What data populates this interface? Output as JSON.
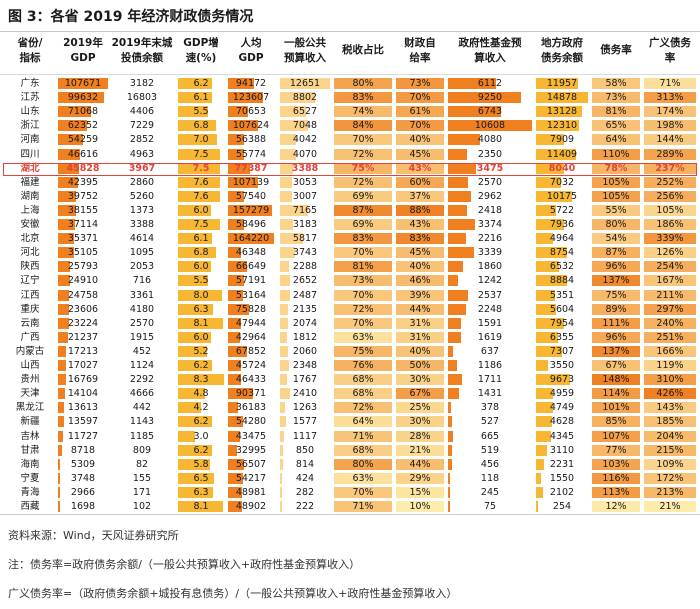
{
  "title": "图 3：各省 2019 年经济财政债务情况",
  "headers": [
    [
      "省份/",
      "指标"
    ],
    [
      "2019年",
      "GDP"
    ],
    [
      "2019年末城",
      "投债余额"
    ],
    [
      "GDP增",
      "速(%)"
    ],
    [
      "人均",
      "GDP"
    ],
    [
      "一般公共",
      "预算收入"
    ],
    [
      "税收占比"
    ],
    [
      "财政自",
      "给率"
    ],
    [
      "政府性基金预",
      "算收入"
    ],
    [
      "地方政府",
      "债务余额"
    ],
    [
      "债务率"
    ],
    [
      "广义债务",
      "率"
    ]
  ],
  "rows": [
    {
      "province": "广东",
      "gdp": "107671",
      "ctb": "3182",
      "growth": "6.2",
      "pgdp": "94172",
      "rev": "12651",
      "tax": "80%",
      "self": "73%",
      "fund": "6112",
      "debt": "11957",
      "dr": "58%",
      "gdr": "71%"
    },
    {
      "province": "江苏",
      "gdp": "99632",
      "ctb": "16803",
      "growth": "6.1",
      "pgdp": "123607",
      "rev": "8802",
      "tax": "83%",
      "self": "70%",
      "fund": "9250",
      "debt": "14878",
      "dr": "73%",
      "gdr": "313%"
    },
    {
      "province": "山东",
      "gdp": "71068",
      "ctb": "4406",
      "growth": "5.5",
      "pgdp": "70653",
      "rev": "6527",
      "tax": "74%",
      "self": "61%",
      "fund": "6743",
      "debt": "13128",
      "dr": "81%",
      "gdr": "174%"
    },
    {
      "province": "浙江",
      "gdp": "62352",
      "ctb": "7229",
      "growth": "6.8",
      "pgdp": "107624",
      "rev": "7048",
      "tax": "84%",
      "self": "70%",
      "fund": "10608",
      "debt": "12310",
      "dr": "65%",
      "gdr": "198%"
    },
    {
      "province": "河南",
      "gdp": "54259",
      "ctb": "2852",
      "growth": "7.0",
      "pgdp": "56388",
      "rev": "4042",
      "tax": "70%",
      "self": "40%",
      "fund": "4080",
      "debt": "7909",
      "dr": "64%",
      "gdr": "144%"
    },
    {
      "province": "四川",
      "gdp": "46616",
      "ctb": "4963",
      "growth": "7.5",
      "pgdp": "55774",
      "rev": "4070",
      "tax": "72%",
      "self": "45%",
      "fund": "2350",
      "debt": "11409",
      "dr": "110%",
      "gdr": "289%"
    },
    {
      "province": "湖北",
      "gdp": "45828",
      "ctb": "3967",
      "growth": "7.5",
      "pgdp": "77387",
      "rev": "3388",
      "tax": "75%",
      "self": "43%",
      "fund": "3475",
      "debt": "8040",
      "dr": "78%",
      "gdr": "237%"
    },
    {
      "province": "福建",
      "gdp": "42395",
      "ctb": "2860",
      "growth": "7.6",
      "pgdp": "107139",
      "rev": "3053",
      "tax": "72%",
      "self": "60%",
      "fund": "2570",
      "debt": "7032",
      "dr": "105%",
      "gdr": "252%"
    },
    {
      "province": "湖南",
      "gdp": "39752",
      "ctb": "5260",
      "growth": "7.6",
      "pgdp": "57540",
      "rev": "3007",
      "tax": "69%",
      "self": "37%",
      "fund": "2962",
      "debt": "10175",
      "dr": "105%",
      "gdr": "256%"
    },
    {
      "province": "上海",
      "gdp": "38155",
      "ctb": "1373",
      "growth": "6.0",
      "pgdp": "157279",
      "rev": "7165",
      "tax": "87%",
      "self": "88%",
      "fund": "2418",
      "debt": "5722",
      "dr": "55%",
      "gdr": "105%"
    },
    {
      "province": "安徽",
      "gdp": "37114",
      "ctb": "3388",
      "growth": "7.5",
      "pgdp": "58496",
      "rev": "3183",
      "tax": "69%",
      "self": "43%",
      "fund": "3374",
      "debt": "7936",
      "dr": "80%",
      "gdr": "186%"
    },
    {
      "province": "北京",
      "gdp": "35371",
      "ctb": "4614",
      "growth": "6.1",
      "pgdp": "164220",
      "rev": "5817",
      "tax": "83%",
      "self": "83%",
      "fund": "2216",
      "debt": "4964",
      "dr": "54%",
      "gdr": "339%"
    },
    {
      "province": "河北",
      "gdp": "35105",
      "ctb": "1095",
      "growth": "6.8",
      "pgdp": "46348",
      "rev": "3743",
      "tax": "70%",
      "self": "45%",
      "fund": "3339",
      "debt": "8754",
      "dr": "87%",
      "gdr": "126%"
    },
    {
      "province": "陕西",
      "gdp": "25793",
      "ctb": "2053",
      "growth": "6.0",
      "pgdp": "66649",
      "rev": "2288",
      "tax": "81%",
      "self": "40%",
      "fund": "1860",
      "debt": "6532",
      "dr": "96%",
      "gdr": "254%"
    },
    {
      "province": "辽宁",
      "gdp": "24910",
      "ctb": "716",
      "growth": "5.5",
      "pgdp": "57191",
      "rev": "2652",
      "tax": "73%",
      "self": "46%",
      "fund": "1242",
      "debt": "8884",
      "dr": "137%",
      "gdr": "167%"
    },
    {
      "province": "江西",
      "gdp": "24758",
      "ctb": "3361",
      "growth": "8.0",
      "pgdp": "53164",
      "rev": "2487",
      "tax": "70%",
      "self": "39%",
      "fund": "2537",
      "debt": "5351",
      "dr": "75%",
      "gdr": "211%"
    },
    {
      "province": "重庆",
      "gdp": "23606",
      "ctb": "4180",
      "growth": "6.3",
      "pgdp": "75828",
      "rev": "2135",
      "tax": "72%",
      "self": "44%",
      "fund": "2248",
      "debt": "5604",
      "dr": "89%",
      "gdr": "297%"
    },
    {
      "province": "云南",
      "gdp": "23224",
      "ctb": "2570",
      "growth": "8.1",
      "pgdp": "47944",
      "rev": "2074",
      "tax": "70%",
      "self": "31%",
      "fund": "1591",
      "debt": "7954",
      "dr": "111%",
      "gdr": "240%"
    },
    {
      "province": "广西",
      "gdp": "21237",
      "ctb": "1915",
      "growth": "6.0",
      "pgdp": "42964",
      "rev": "1812",
      "tax": "63%",
      "self": "31%",
      "fund": "1619",
      "debt": "6355",
      "dr": "96%",
      "gdr": "251%"
    },
    {
      "province": "内蒙古",
      "gdp": "17213",
      "ctb": "452",
      "growth": "5.2",
      "pgdp": "67852",
      "rev": "2060",
      "tax": "75%",
      "self": "40%",
      "fund": "637",
      "debt": "7307",
      "dr": "137%",
      "gdr": "166%"
    },
    {
      "province": "山西",
      "gdp": "17027",
      "ctb": "1124",
      "growth": "6.2",
      "pgdp": "45724",
      "rev": "2348",
      "tax": "76%",
      "self": "50%",
      "fund": "1186",
      "debt": "3550",
      "dr": "67%",
      "gdr": "119%"
    },
    {
      "province": "贵州",
      "gdp": "16769",
      "ctb": "2292",
      "growth": "8.3",
      "pgdp": "46433",
      "rev": "1767",
      "tax": "68%",
      "self": "30%",
      "fund": "1711",
      "debt": "9673",
      "dr": "148%",
      "gdr": "310%"
    },
    {
      "province": "天津",
      "gdp": "14104",
      "ctb": "4666",
      "growth": "4.8",
      "pgdp": "90371",
      "rev": "2410",
      "tax": "68%",
      "self": "67%",
      "fund": "1431",
      "debt": "4959",
      "dr": "114%",
      "gdr": "426%"
    },
    {
      "province": "黑龙江",
      "gdp": "13613",
      "ctb": "442",
      "growth": "4.2",
      "pgdp": "36183",
      "rev": "1263",
      "tax": "72%",
      "self": "25%",
      "fund": "378",
      "debt": "4749",
      "dr": "101%",
      "gdr": "143%"
    },
    {
      "province": "新疆",
      "gdp": "13597",
      "ctb": "1143",
      "growth": "6.2",
      "pgdp": "54280",
      "rev": "1577",
      "tax": "64%",
      "self": "30%",
      "fund": "527",
      "debt": "4628",
      "dr": "85%",
      "gdr": "185%"
    },
    {
      "province": "吉林",
      "gdp": "11727",
      "ctb": "1185",
      "growth": "3.0",
      "pgdp": "43475",
      "rev": "1117",
      "tax": "71%",
      "self": "28%",
      "fund": "665",
      "debt": "4345",
      "dr": "107%",
      "gdr": "204%"
    },
    {
      "province": "甘肃",
      "gdp": "8718",
      "ctb": "809",
      "growth": "6.2",
      "pgdp": "32995",
      "rev": "850",
      "tax": "68%",
      "self": "21%",
      "fund": "519",
      "debt": "3110",
      "dr": "77%",
      "gdr": "215%"
    },
    {
      "province": "海南",
      "gdp": "5309",
      "ctb": "82",
      "growth": "5.8",
      "pgdp": "56507",
      "rev": "814",
      "tax": "80%",
      "self": "44%",
      "fund": "456",
      "debt": "2231",
      "dr": "103%",
      "gdr": "109%"
    },
    {
      "province": "宁夏",
      "gdp": "3748",
      "ctb": "155",
      "growth": "6.5",
      "pgdp": "54217",
      "rev": "424",
      "tax": "63%",
      "self": "29%",
      "fund": "118",
      "debt": "1550",
      "dr": "116%",
      "gdr": "172%"
    },
    {
      "province": "青海",
      "gdp": "2966",
      "ctb": "171",
      "growth": "6.3",
      "pgdp": "48981",
      "rev": "282",
      "tax": "70%",
      "self": "15%",
      "fund": "245",
      "debt": "2102",
      "dr": "113%",
      "gdr": "213%"
    },
    {
      "province": "西藏",
      "gdp": "1698",
      "ctb": "102",
      "growth": "8.1",
      "pgdp": "48902",
      "rev": "222",
      "tax": "71%",
      "self": "10%",
      "fund": "75",
      "debt": "254",
      "dr": "12%",
      "gdr": "21%"
    }
  ],
  "notes": {
    "source": "资料来源：Wind，天风证券研究所",
    "note1": "注：债务率=政府债务余额/（一般公共预算收入+政府性基金预算收入）",
    "note2": "广义债务率=（政府债务余额+城投有息债务）/（一般公共预算收入+政府性基金预算收入）"
  }
}
